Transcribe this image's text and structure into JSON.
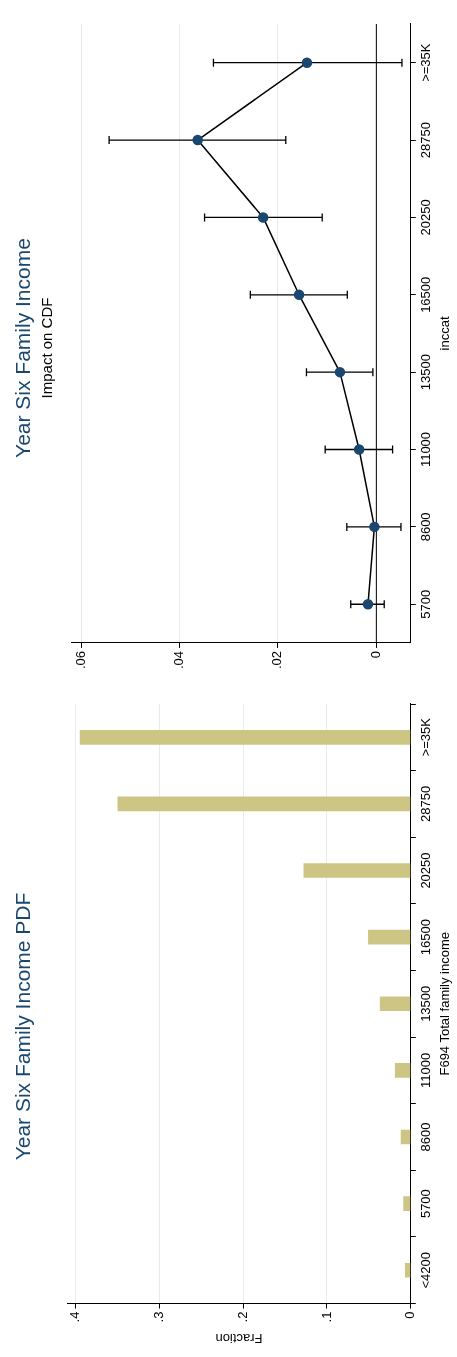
{
  "chart_data": [
    {
      "type": "bar",
      "orientation": "horizontal",
      "title": "Year Six Family Income PDF",
      "ylabel": "F694 Total family income",
      "xlabel": "Fraction",
      "categories": [
        ">=35K",
        "28750",
        "20250",
        "16500",
        "13500",
        "11000",
        "8600",
        "5700",
        "<4200"
      ],
      "values": [
        0.395,
        0.35,
        0.128,
        0.051,
        0.037,
        0.019,
        0.012,
        0.009,
        0.007
      ],
      "color": "#cdc583",
      "xlim": [
        0.41,
        0
      ],
      "xticks": [
        {
          "value": 0.4,
          "label": ".4"
        },
        {
          "value": 0.3,
          "label": ".3"
        },
        {
          "value": 0.2,
          "label": ".2"
        },
        {
          "value": 0.1,
          "label": ".1"
        },
        0
      ],
      "grid": "x",
      "legend": false
    },
    {
      "type": "line",
      "orientation": "horizontal",
      "title": "Year Six Family Income",
      "subtitle": "Impact on CDF",
      "ylabel": "inccat",
      "categories": [
        ">=35K",
        "28750",
        "20250",
        "16500",
        "13500",
        "11000",
        "8600",
        "5700"
      ],
      "values": [
        0.0141,
        0.0363,
        0.023,
        0.0157,
        0.0074,
        0.0035,
        0.0004,
        0.0017
      ],
      "errors": [
        [
          -0.0052,
          0.0331
        ],
        [
          0.0184,
          0.0543
        ],
        [
          0.011,
          0.0349
        ],
        [
          0.0059,
          0.0256
        ],
        [
          0.0007,
          0.0142
        ],
        [
          -0.0033,
          0.0104
        ],
        [
          -0.005,
          0.006
        ],
        [
          -0.0016,
          0.0052
        ]
      ],
      "color": "#1a476f",
      "marker": "circle",
      "line_style": "solid",
      "xlim": [
        0.062,
        -0.007
      ],
      "xticks": [
        {
          "value": 0.06,
          "label": ".06"
        },
        {
          "value": 0.04,
          "label": ".04"
        },
        {
          "value": 0.02,
          "label": ".02"
        },
        0
      ],
      "ref_lines": [
        {
          "axis": "x",
          "value": 0
        }
      ],
      "grid": "x",
      "legend": false
    }
  ]
}
